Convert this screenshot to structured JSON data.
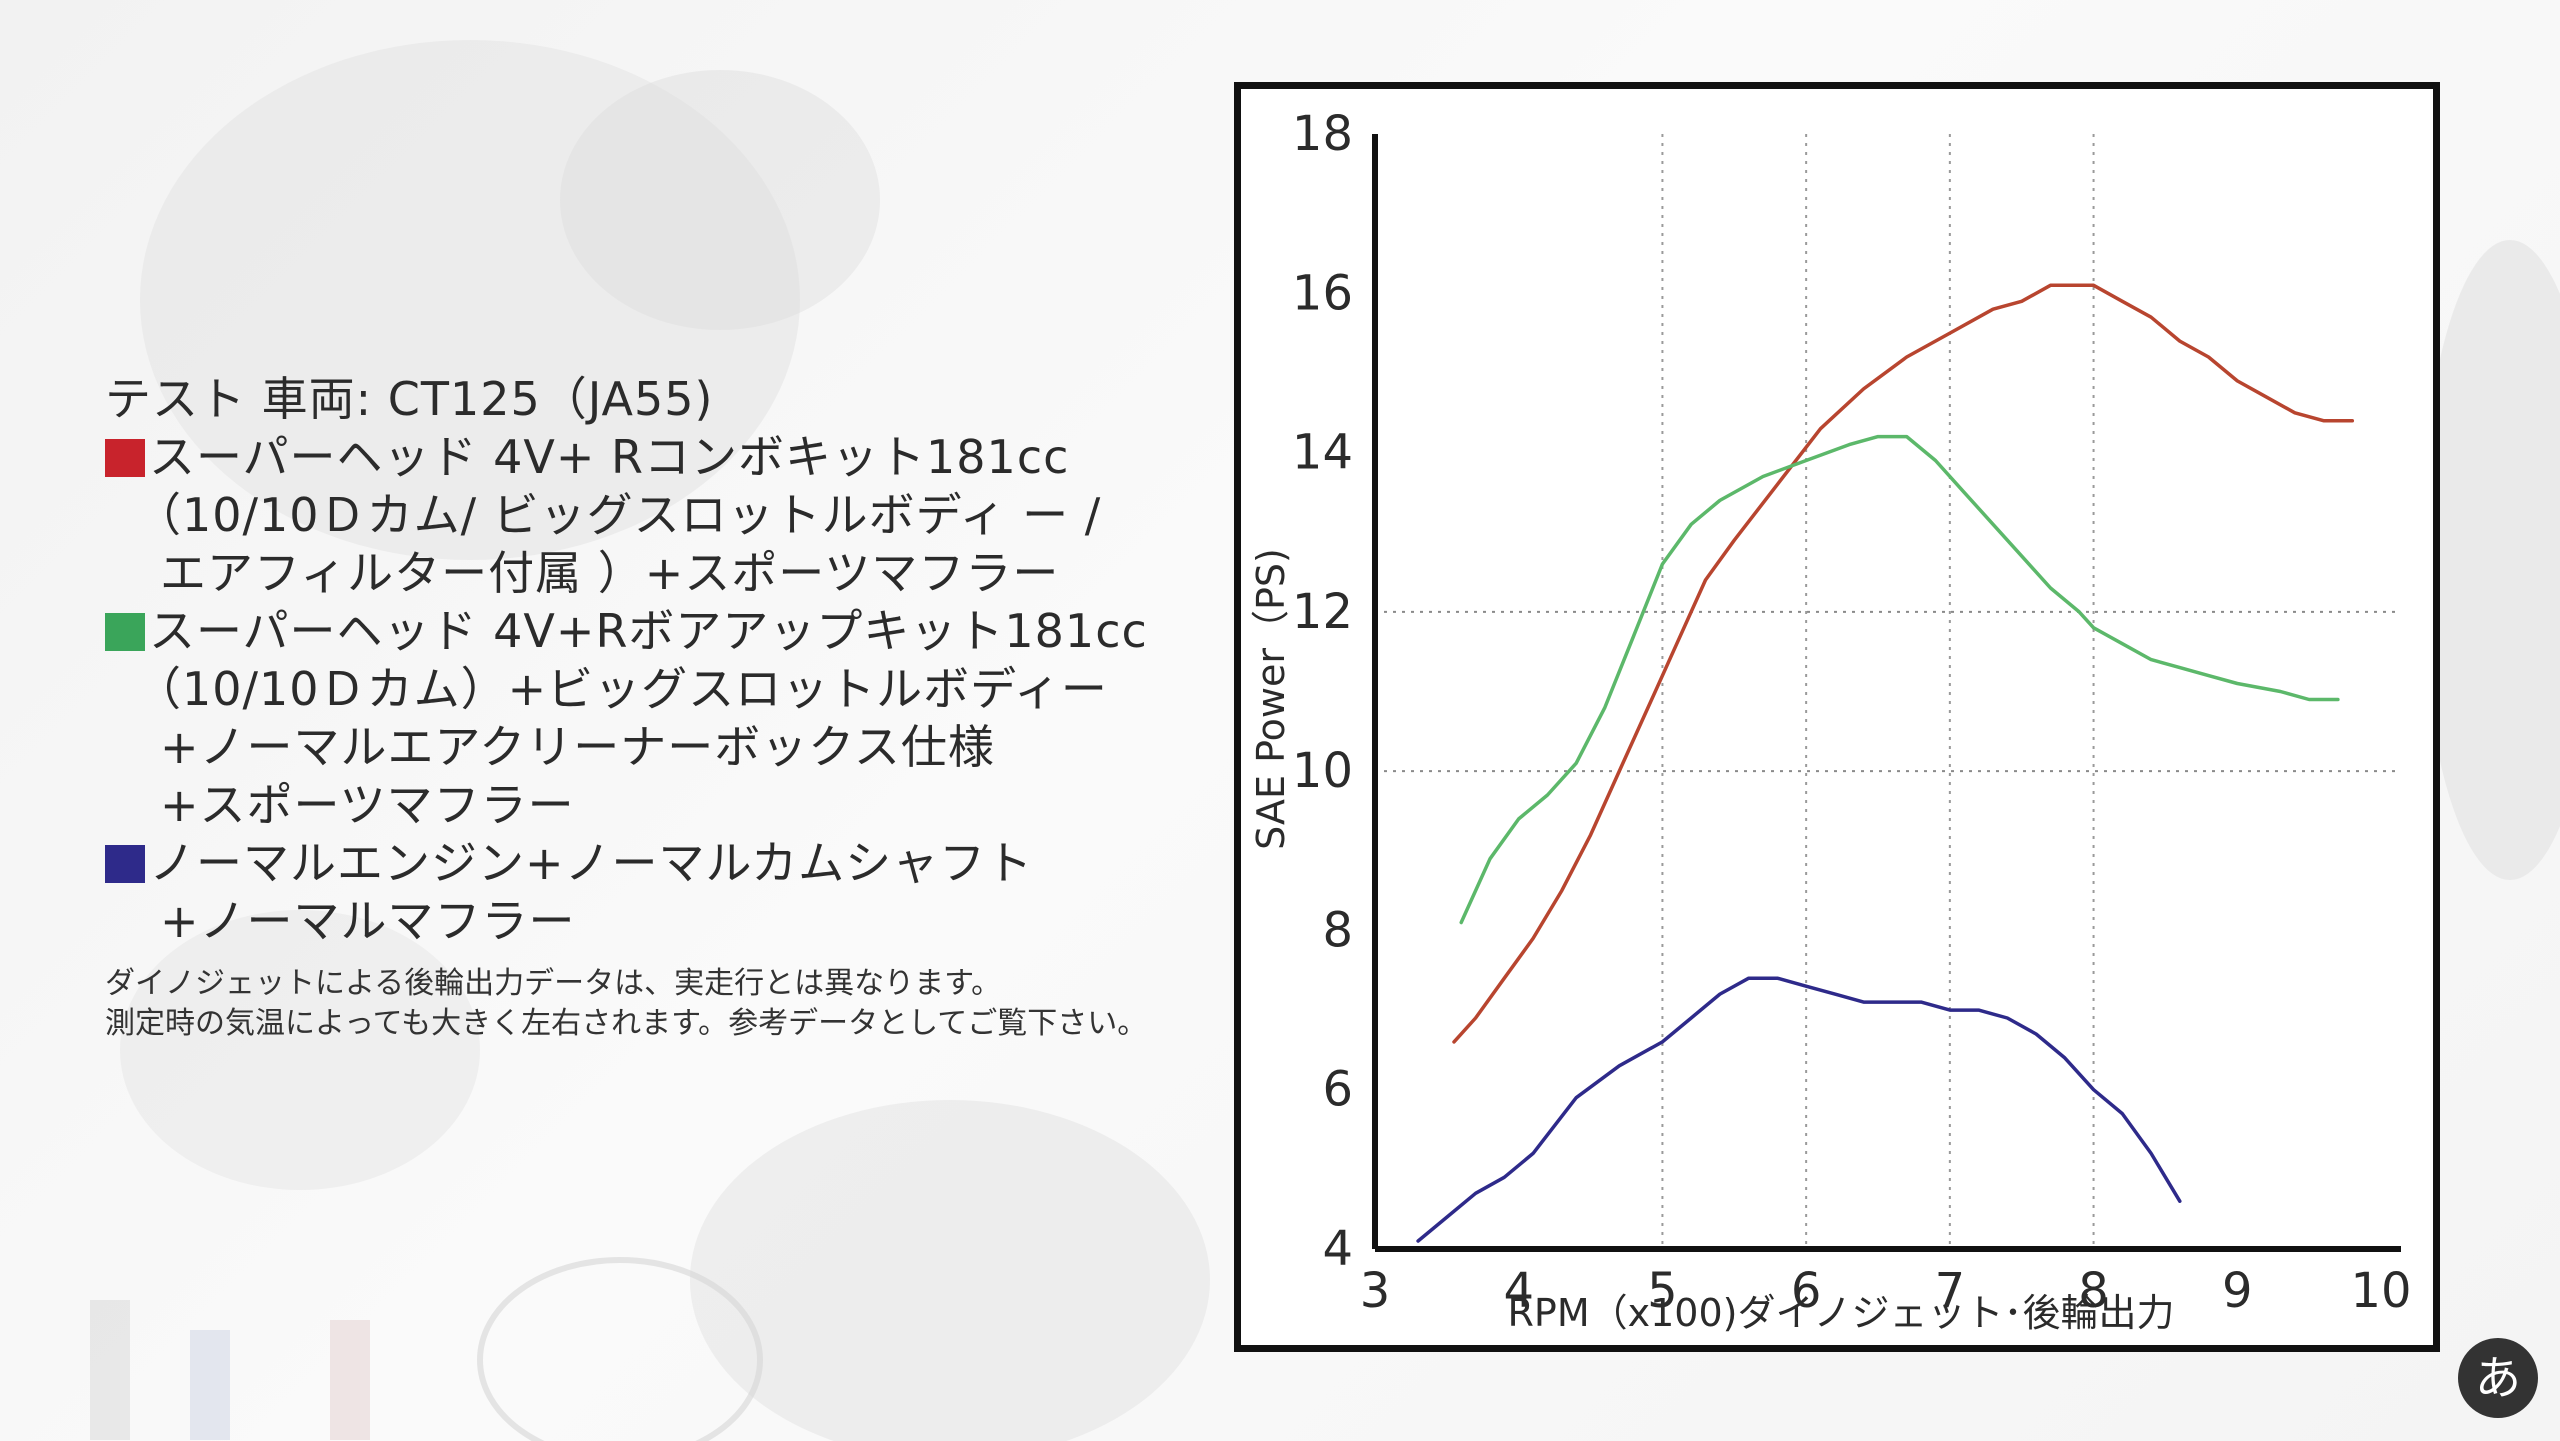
{
  "legend": {
    "vehicle": "テスト 車両: CT125（JA55)",
    "entries": [
      {
        "color": "#c8232c",
        "lines": [
          "スーパーヘッド 4V+ Rコンボキット181cc",
          "（10/10Ｄカム/ ビッグスロットルボディ ー /",
          "エアフィルター付属 ）+スポーツマフラー"
        ]
      },
      {
        "color": "#3aa55a",
        "lines": [
          "スーパーヘッド 4V+Rボアアップキット181cc",
          "（10/10Ｄカム）+ビッグスロットルボディー",
          "+ノーマルエアクリーナーボックス仕様",
          "+スポーツマフラー"
        ]
      },
      {
        "color": "#2e2a8a",
        "lines": [
          "ノーマルエンジン+ノーマルカムシャフト",
          "+ノーマルマフラー"
        ]
      }
    ],
    "notes": [
      "ダイノジェットによる後輪出力データは、実走行とは異なります。",
      "測定時の気温によっても大きく左右されます。参考データとしてご覧下さい。"
    ]
  },
  "logo": {
    "glyph": "あ",
    "icon": "motor-fan-logo-icon"
  },
  "chart_data": {
    "type": "line",
    "title": "",
    "xlabel": "RPM（x100)ダイノジェット･後輪出力",
    "ylabel": "SAE Power（PS)",
    "xlim": [
      3,
      10
    ],
    "ylim": [
      4,
      18
    ],
    "x_ticks": [
      3,
      4,
      5,
      6,
      7,
      8,
      9,
      10
    ],
    "y_ticks": [
      4,
      6,
      8,
      10,
      12,
      14,
      16,
      18
    ],
    "grid": "dotted at y 10, 12 and x 5, 6, 7, 8",
    "series": [
      {
        "color": "#b8452f",
        "x": [
          3.55,
          3.7,
          3.9,
          4.1,
          4.3,
          4.5,
          4.7,
          4.9,
          5.1,
          5.3,
          5.5,
          5.8,
          6.1,
          6.4,
          6.7,
          7.0,
          7.3,
          7.5,
          7.7,
          7.9,
          8.0,
          8.2,
          8.4,
          8.6,
          8.8,
          9.0,
          9.2,
          9.4,
          9.6,
          9.8
        ],
        "values": [
          6.6,
          6.9,
          7.4,
          7.9,
          8.5,
          9.2,
          10.0,
          10.8,
          11.6,
          12.4,
          12.9,
          13.6,
          14.3,
          14.8,
          15.2,
          15.5,
          15.8,
          15.9,
          16.1,
          16.1,
          16.1,
          15.9,
          15.7,
          15.4,
          15.2,
          14.9,
          14.7,
          14.5,
          14.4,
          14.4
        ]
      },
      {
        "color": "#5cb86a",
        "x": [
          3.6,
          3.8,
          4.0,
          4.2,
          4.4,
          4.6,
          4.8,
          5.0,
          5.2,
          5.4,
          5.7,
          6.0,
          6.3,
          6.5,
          6.7,
          6.9,
          7.1,
          7.3,
          7.5,
          7.7,
          7.9,
          8.0,
          8.2,
          8.4,
          8.6,
          8.8,
          9.0,
          9.3,
          9.5,
          9.6,
          9.7
        ],
        "values": [
          8.1,
          8.9,
          9.4,
          9.7,
          10.1,
          10.8,
          11.7,
          12.6,
          13.1,
          13.4,
          13.7,
          13.9,
          14.1,
          14.2,
          14.2,
          13.9,
          13.5,
          13.1,
          12.7,
          12.3,
          12.0,
          11.8,
          11.6,
          11.4,
          11.3,
          11.2,
          11.1,
          11.0,
          10.9,
          10.9,
          10.9
        ]
      },
      {
        "color": "#2e2a8a",
        "x": [
          3.3,
          3.5,
          3.7,
          3.9,
          4.1,
          4.4,
          4.7,
          5.0,
          5.2,
          5.4,
          5.6,
          5.8,
          6.0,
          6.2,
          6.4,
          6.6,
          6.8,
          7.0,
          7.2,
          7.4,
          7.6,
          7.8,
          8.0,
          8.2,
          8.4,
          8.6
        ],
        "values": [
          4.1,
          4.4,
          4.7,
          4.9,
          5.2,
          5.9,
          6.3,
          6.6,
          6.9,
          7.2,
          7.4,
          7.4,
          7.3,
          7.2,
          7.1,
          7.1,
          7.1,
          7.0,
          7.0,
          6.9,
          6.7,
          6.4,
          6.0,
          5.7,
          5.2,
          4.6
        ]
      }
    ]
  }
}
